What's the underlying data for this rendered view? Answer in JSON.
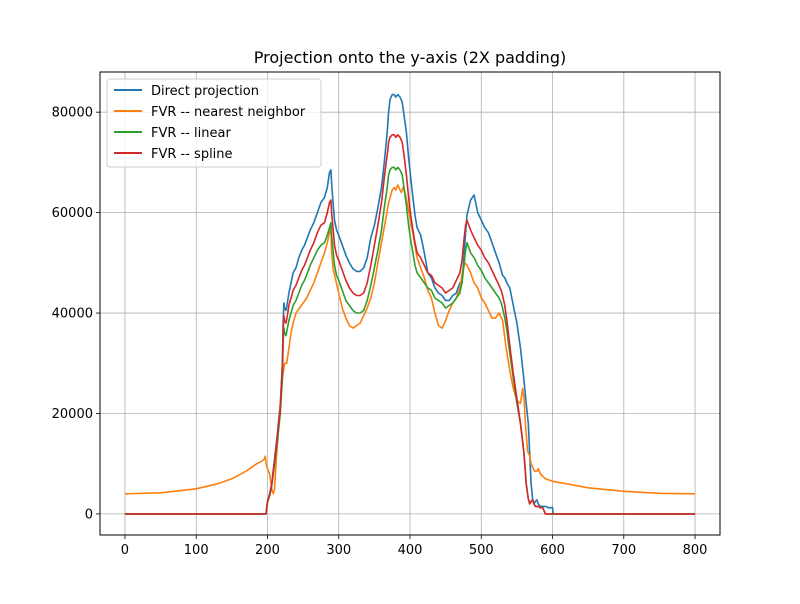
{
  "chart_data": {
    "type": "line",
    "title": "Projection onto the y-axis (2X padding)",
    "xlabel": "",
    "ylabel": "",
    "xlim": [
      -35,
      835
    ],
    "ylim": [
      -4200,
      88000
    ],
    "xticks": [
      0,
      100,
      200,
      300,
      400,
      500,
      600,
      700,
      800
    ],
    "yticks": [
      0,
      20000,
      40000,
      60000,
      80000
    ],
    "grid": true,
    "legend_position": "top-left",
    "series": [
      {
        "name": "Direct projection",
        "color": "#1f77b4",
        "x": [
          0,
          197,
          198,
          200,
          203,
          206,
          210,
          214,
          218,
          221,
          222,
          223,
          224,
          226,
          228,
          230,
          233,
          236,
          240,
          244,
          248,
          252,
          256,
          260,
          265,
          270,
          275,
          280,
          284,
          287,
          289,
          290,
          292,
          294,
          297,
          300,
          305,
          310,
          315,
          320,
          325,
          330,
          335,
          340,
          345,
          350,
          355,
          360,
          364,
          368,
          370,
          372,
          375,
          378,
          380,
          383,
          386,
          389,
          392,
          395,
          398,
          401,
          404,
          407,
          410,
          415,
          420,
          425,
          430,
          435,
          440,
          445,
          450,
          455,
          460,
          465,
          470,
          473,
          476,
          478,
          480,
          485,
          490,
          495,
          500,
          505,
          510,
          515,
          520,
          525,
          528,
          530,
          533,
          536,
          540,
          545,
          550,
          555,
          560,
          563,
          566,
          568,
          570,
          572,
          574,
          576,
          578,
          580,
          583,
          586,
          590,
          595,
          600,
          601,
          605,
          700,
          800
        ],
        "y": [
          0,
          0,
          0,
          2500,
          4000,
          6000,
          11000,
          16000,
          22000,
          30000,
          38000,
          42000,
          41000,
          40500,
          42000,
          44000,
          46000,
          48000,
          49000,
          51000,
          52500,
          53500,
          55000,
          56500,
          58000,
          60000,
          62000,
          63000,
          65000,
          68000,
          68500,
          66000,
          62000,
          58500,
          56500,
          55500,
          53500,
          51500,
          50000,
          48800,
          48300,
          48300,
          49000,
          51000,
          55000,
          57500,
          61000,
          65000,
          70000,
          76000,
          80000,
          82500,
          83500,
          83500,
          83000,
          83500,
          83000,
          82000,
          79000,
          76000,
          71000,
          67000,
          63000,
          59500,
          57000,
          55500,
          52000,
          48000,
          47000,
          45000,
          44000,
          43500,
          42500,
          42500,
          43500,
          44000,
          46000,
          46000,
          52000,
          56000,
          59500,
          62500,
          63500,
          60000,
          58500,
          57000,
          56000,
          54000,
          52000,
          50000,
          48500,
          47500,
          47000,
          46000,
          45000,
          41500,
          38000,
          33000,
          26500,
          22000,
          18000,
          12000,
          6000,
          3000,
          2000,
          2500,
          2800,
          2000,
          1500,
          1500,
          1500,
          1200,
          1300,
          0,
          0,
          0,
          0
        ],
        "y_note": "values estimated"
      },
      {
        "name": "FVR -- nearest neighbor",
        "color": "#ff7f0e",
        "x": [
          0,
          50,
          100,
          130,
          150,
          170,
          185,
          192,
          196,
          197,
          198,
          200,
          203,
          206,
          208,
          210,
          212,
          215,
          218,
          221,
          224,
          227,
          230,
          233,
          236,
          240,
          245,
          250,
          255,
          260,
          265,
          270,
          275,
          280,
          284,
          287,
          289,
          290,
          292,
          295,
          300,
          305,
          310,
          315,
          320,
          325,
          330,
          335,
          340,
          345,
          350,
          355,
          360,
          365,
          370,
          375,
          378,
          380,
          383,
          386,
          388,
          390,
          393,
          396,
          400,
          405,
          410,
          415,
          420,
          425,
          430,
          435,
          440,
          445,
          450,
          455,
          460,
          465,
          470,
          474,
          477,
          480,
          485,
          490,
          495,
          500,
          505,
          510,
          515,
          520,
          525,
          530,
          535,
          540,
          545,
          550,
          555,
          558,
          560,
          562,
          565,
          568,
          570,
          573,
          575,
          578,
          580,
          583,
          586,
          590,
          600,
          620,
          650,
          700,
          750,
          800
        ],
        "y": [
          4000,
          4200,
          5000,
          6000,
          7000,
          8500,
          10000,
          10500,
          11000,
          11500,
          10000,
          9000,
          8000,
          5000,
          4000,
          5000,
          10000,
          16000,
          22000,
          27000,
          30000,
          30000,
          33000,
          36000,
          38000,
          40000,
          41000,
          42000,
          43000,
          44500,
          46000,
          48000,
          50000,
          52000,
          54000,
          56000,
          57000,
          52000,
          49000,
          47000,
          44000,
          41000,
          39000,
          37500,
          37000,
          37500,
          38000,
          39500,
          41000,
          43000,
          46000,
          50000,
          54000,
          58000,
          62000,
          64500,
          65000,
          64500,
          65500,
          64500,
          64000,
          65000,
          64000,
          62000,
          59000,
          55000,
          51000,
          49000,
          47000,
          44500,
          43000,
          40000,
          37500,
          37000,
          38500,
          40500,
          42000,
          43000,
          45000,
          48500,
          50000,
          49500,
          48000,
          46000,
          45000,
          43000,
          42000,
          40500,
          39000,
          39000,
          40000,
          38500,
          33000,
          28500,
          25000,
          22500,
          22000,
          25000,
          23000,
          18000,
          12500,
          11500,
          10000,
          9000,
          8500,
          8500,
          9000,
          8000,
          7500,
          7000,
          6500,
          6000,
          5200,
          4500,
          4100,
          4000
        ],
        "y_note": "values estimated"
      },
      {
        "name": "FVR -- linear",
        "color": "#2ca02c",
        "x": [
          0,
          197,
          198,
          200,
          203,
          206,
          210,
          214,
          218,
          221,
          222,
          223,
          224,
          226,
          228,
          230,
          233,
          236,
          240,
          244,
          248,
          252,
          256,
          260,
          265,
          270,
          275,
          280,
          284,
          287,
          289,
          290,
          292,
          294,
          297,
          300,
          305,
          310,
          315,
          320,
          325,
          330,
          335,
          340,
          345,
          350,
          355,
          360,
          364,
          368,
          370,
          372,
          375,
          378,
          380,
          383,
          386,
          389,
          392,
          395,
          398,
          401,
          404,
          407,
          410,
          415,
          420,
          425,
          430,
          435,
          440,
          445,
          450,
          455,
          460,
          465,
          470,
          473,
          476,
          478,
          480,
          485,
          490,
          495,
          500,
          505,
          510,
          515,
          520,
          525,
          528,
          530,
          533,
          536,
          540,
          545,
          550,
          555,
          560,
          563,
          566,
          568,
          570,
          572,
          574,
          576,
          578,
          580,
          583,
          586,
          590,
          595,
          600,
          601,
          605,
          700,
          800
        ],
        "y": [
          0,
          0,
          0,
          2300,
          3500,
          5500,
          10000,
          14500,
          20000,
          27000,
          34000,
          37000,
          36000,
          35500,
          37000,
          38500,
          40000,
          41500,
          42500,
          44000,
          45500,
          46500,
          48000,
          49500,
          51000,
          52500,
          53500,
          54000,
          55500,
          57000,
          58000,
          55500,
          52500,
          49500,
          47500,
          46500,
          44500,
          42500,
          41500,
          40500,
          40000,
          40000,
          40500,
          42500,
          45500,
          49000,
          52500,
          56500,
          61000,
          65000,
          67500,
          68500,
          69000,
          69000,
          68500,
          69000,
          68500,
          67500,
          64500,
          61500,
          57500,
          54500,
          52000,
          49500,
          48000,
          47000,
          46000,
          45000,
          44500,
          43000,
          42500,
          42000,
          41000,
          41500,
          42000,
          43000,
          44000,
          46000,
          50000,
          52500,
          54000,
          52000,
          51000,
          49500,
          48500,
          47000,
          46000,
          45000,
          44000,
          43000,
          42000,
          41000,
          39000,
          36500,
          32000,
          27000,
          22000,
          18000,
          12000,
          6000,
          3000,
          2000,
          2500,
          2800,
          2000,
          1500,
          1500,
          1500,
          1200,
          1300,
          0,
          0,
          0,
          0,
          0,
          0,
          0
        ],
        "y_note": "values estimated"
      },
      {
        "name": "FVR -- spline",
        "color": "#d62728",
        "x": [
          0,
          197,
          198,
          200,
          203,
          206,
          210,
          214,
          218,
          221,
          222,
          223,
          224,
          226,
          228,
          230,
          233,
          236,
          240,
          244,
          248,
          252,
          256,
          260,
          265,
          270,
          275,
          280,
          284,
          287,
          289,
          290,
          292,
          294,
          297,
          300,
          305,
          310,
          315,
          320,
          325,
          330,
          335,
          340,
          345,
          350,
          355,
          360,
          364,
          368,
          370,
          372,
          375,
          378,
          380,
          383,
          386,
          389,
          392,
          395,
          398,
          401,
          404,
          407,
          410,
          415,
          420,
          425,
          430,
          435,
          440,
          445,
          450,
          455,
          460,
          465,
          470,
          473,
          476,
          478,
          480,
          485,
          490,
          495,
          500,
          505,
          510,
          515,
          520,
          525,
          528,
          530,
          533,
          536,
          540,
          545,
          550,
          555,
          560,
          563,
          566,
          568,
          570,
          572,
          574,
          576,
          578,
          580,
          583,
          586,
          590,
          595,
          600,
          601,
          605,
          700,
          800
        ],
        "y": [
          0,
          0,
          0,
          2500,
          3800,
          5800,
          10500,
          15500,
          21000,
          29000,
          36000,
          39500,
          38500,
          38000,
          39500,
          41500,
          43000,
          44500,
          45500,
          47000,
          48500,
          49500,
          51000,
          52500,
          54000,
          56000,
          57500,
          58000,
          60000,
          62000,
          62500,
          60000,
          57000,
          53500,
          51500,
          50500,
          48500,
          46500,
          45000,
          44000,
          43500,
          43500,
          44000,
          46000,
          49500,
          53500,
          57500,
          62000,
          67000,
          71500,
          74000,
          75000,
          75500,
          75500,
          75000,
          75500,
          75000,
          74000,
          71000,
          67500,
          63000,
          59500,
          56500,
          54000,
          52000,
          51000,
          49500,
          48000,
          47500,
          46000,
          45500,
          45000,
          44000,
          44500,
          45000,
          46500,
          48000,
          50500,
          55000,
          57500,
          58500,
          56500,
          55000,
          53500,
          52500,
          51000,
          50000,
          48500,
          47000,
          45500,
          44500,
          43500,
          41500,
          38500,
          33500,
          28000,
          23000,
          18000,
          12000,
          6000,
          3000,
          2000,
          2500,
          2800,
          2000,
          1500,
          1500,
          1500,
          1200,
          1300,
          0,
          0,
          0,
          0,
          0,
          0,
          0
        ],
        "y_note": "values estimated"
      }
    ]
  }
}
